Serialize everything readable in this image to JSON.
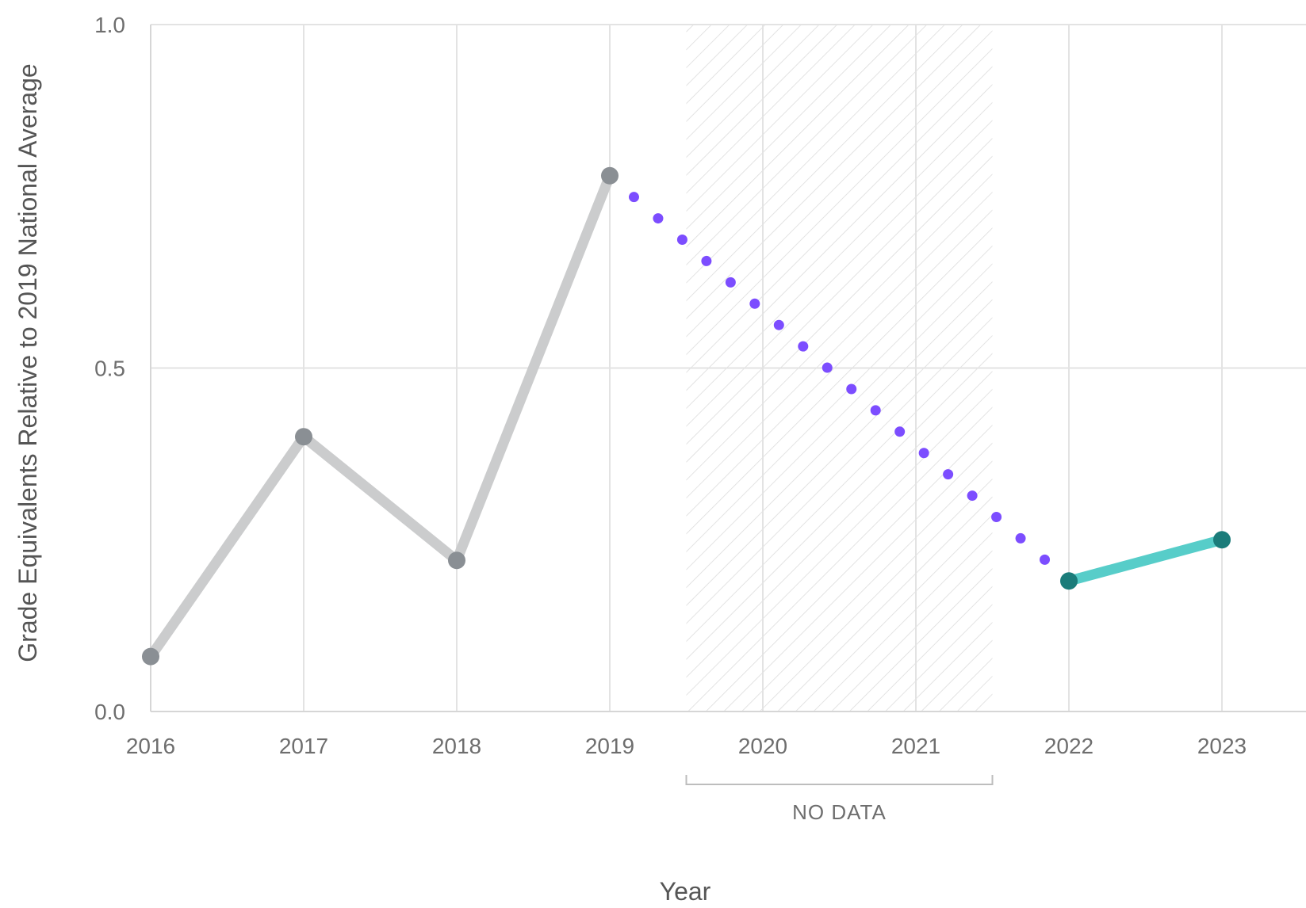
{
  "chart_data": {
    "type": "line",
    "xlabel": "Year",
    "ylabel": "Grade Equivalents Relative to 2019 National Average",
    "x_ticks": [
      "2016",
      "2017",
      "2018",
      "2019",
      "2020",
      "2021",
      "2022",
      "2023"
    ],
    "y_ticks": [
      "0.0",
      "0.5",
      "1.0"
    ],
    "xlim": [
      2016,
      2023.5
    ],
    "ylim": [
      0,
      1
    ],
    "grid": true,
    "series": [
      {
        "style": "solid",
        "color": "#cbcccd",
        "marker_color": "#8a8f94",
        "x": [
          2016,
          2017,
          2018,
          2019
        ],
        "y": [
          0.08,
          0.4,
          0.22,
          0.78
        ]
      },
      {
        "style": "dotted",
        "color": "#7c4dff",
        "x": [
          2019,
          2022
        ],
        "y": [
          0.78,
          0.19
        ]
      },
      {
        "style": "solid",
        "color": "#57cdc9",
        "marker_color": "#1b7c7a",
        "x": [
          2022,
          2023
        ],
        "y": [
          0.19,
          0.25
        ]
      }
    ],
    "no_data_region": {
      "x": [
        2019.5,
        2021.5
      ],
      "label": "NO DATA"
    }
  }
}
